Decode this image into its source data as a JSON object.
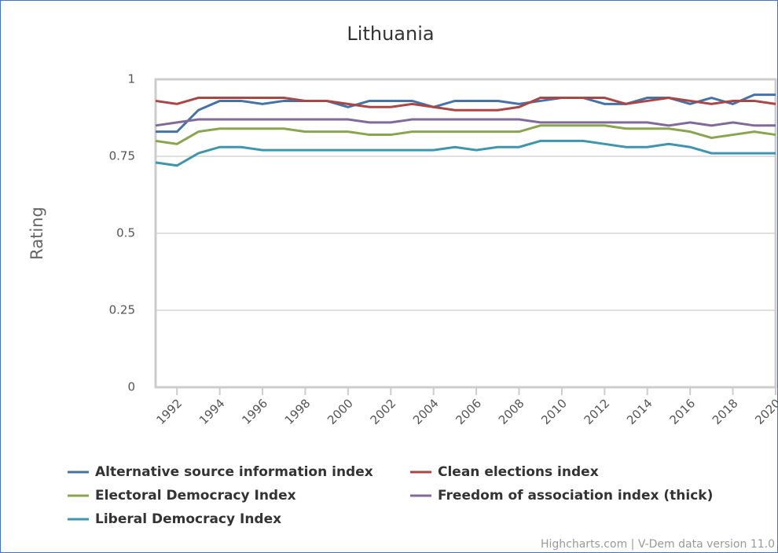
{
  "chart_data": {
    "type": "line",
    "title": "Lithuania",
    "y_label": "Rating",
    "credits": "Highcharts.com | V-Dem data version 11.0",
    "x": [
      1991,
      1992,
      1993,
      1994,
      1995,
      1996,
      1997,
      1998,
      1999,
      2000,
      2001,
      2002,
      2003,
      2004,
      2005,
      2006,
      2007,
      2008,
      2009,
      2010,
      2011,
      2012,
      2013,
      2014,
      2015,
      2016,
      2017,
      2018,
      2019,
      2020
    ],
    "xlim": [
      1991,
      2020
    ],
    "xticks": [
      1992,
      1994,
      1996,
      1998,
      2000,
      2002,
      2004,
      2006,
      2008,
      2010,
      2012,
      2014,
      2016,
      2018,
      2020
    ],
    "ylim": [
      0,
      1
    ],
    "yticks": [
      0,
      0.25,
      0.5,
      0.75,
      1
    ],
    "grid": true,
    "series": [
      {
        "name": "Alternative source information index",
        "color": "#4572a7",
        "values": [
          0.83,
          0.83,
          0.9,
          0.93,
          0.93,
          0.92,
          0.93,
          0.93,
          0.93,
          0.91,
          0.93,
          0.93,
          0.93,
          0.91,
          0.93,
          0.93,
          0.93,
          0.92,
          0.93,
          0.94,
          0.94,
          0.92,
          0.92,
          0.94,
          0.94,
          0.92,
          0.94,
          0.92,
          0.95,
          0.95
        ]
      },
      {
        "name": "Clean elections index",
        "color": "#aa4643",
        "values": [
          0.93,
          0.92,
          0.94,
          0.94,
          0.94,
          0.94,
          0.94,
          0.93,
          0.93,
          0.92,
          0.91,
          0.91,
          0.92,
          0.91,
          0.9,
          0.9,
          0.9,
          0.91,
          0.94,
          0.94,
          0.94,
          0.94,
          0.92,
          0.93,
          0.94,
          0.93,
          0.92,
          0.93,
          0.93,
          0.92
        ]
      },
      {
        "name": "Electoral Democracy Index",
        "color": "#89a54e",
        "values": [
          0.8,
          0.79,
          0.83,
          0.84,
          0.84,
          0.84,
          0.84,
          0.83,
          0.83,
          0.83,
          0.82,
          0.82,
          0.83,
          0.83,
          0.83,
          0.83,
          0.83,
          0.83,
          0.85,
          0.85,
          0.85,
          0.85,
          0.84,
          0.84,
          0.84,
          0.83,
          0.81,
          0.82,
          0.83,
          0.82
        ]
      },
      {
        "name": "Freedom of association index (thick)",
        "color": "#80699b",
        "values": [
          0.85,
          0.86,
          0.87,
          0.87,
          0.87,
          0.87,
          0.87,
          0.87,
          0.87,
          0.87,
          0.86,
          0.86,
          0.87,
          0.87,
          0.87,
          0.87,
          0.87,
          0.87,
          0.86,
          0.86,
          0.86,
          0.86,
          0.86,
          0.86,
          0.85,
          0.86,
          0.85,
          0.86,
          0.85,
          0.85
        ]
      },
      {
        "name": "Liberal Democracy Index",
        "color": "#3d96ae",
        "values": [
          0.73,
          0.72,
          0.76,
          0.78,
          0.78,
          0.77,
          0.77,
          0.77,
          0.77,
          0.77,
          0.77,
          0.77,
          0.77,
          0.77,
          0.78,
          0.77,
          0.78,
          0.78,
          0.8,
          0.8,
          0.8,
          0.79,
          0.78,
          0.78,
          0.79,
          0.78,
          0.76,
          0.76,
          0.76,
          0.76
        ]
      }
    ]
  }
}
